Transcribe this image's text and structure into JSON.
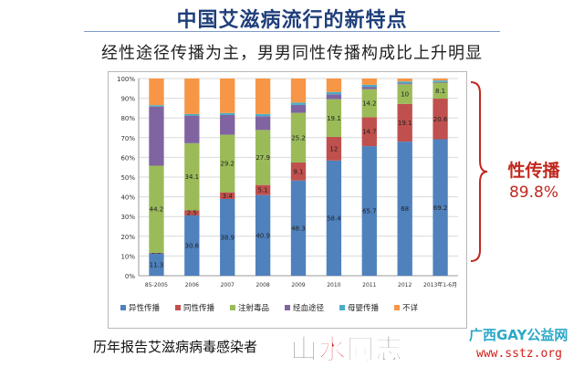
{
  "title": "中国艾滋病流行的新特点",
  "subtitle": "经性途径传播为主，男男同性传播构成比上升明显",
  "callout": {
    "label": "性传播",
    "value": "89.8%"
  },
  "caption": "历年报告艾滋病病毒感染者",
  "watermark": {
    "main_a": "山",
    "main_b": "水",
    "main_c": "同志",
    "org": "广西GAY公益网",
    "url": "www.sstz.org"
  },
  "colors": {
    "heterosexual": "#4f81bd",
    "homosexual": "#c0504d",
    "injection": "#9bbb59",
    "blood": "#8064a2",
    "mtct": "#4bacc6",
    "unknown": "#f79646",
    "callout": "#c0281e"
  },
  "chart_data": {
    "type": "bar",
    "stacked": true,
    "categories": [
      "85-2005",
      "2006",
      "2007",
      "2008",
      "2009",
      "2010",
      "2011",
      "2012",
      "2013年1-6月"
    ],
    "ylim": [
      0,
      100
    ],
    "yticks": [
      "0%",
      "10%",
      "20%",
      "30%",
      "40%",
      "50%",
      "60%",
      "70%",
      "80%",
      "90%",
      "100%"
    ],
    "legend_position": "bottom",
    "grid": true,
    "series": [
      {
        "name": "异性传播",
        "color": "#4f81bd",
        "values": [
          11.3,
          30.6,
          38.9,
          40.9,
          48.3,
          58.4,
          65.7,
          68,
          69.2
        ],
        "labels": [
          "11.3",
          "30.6",
          "38.9",
          "40.9",
          "48.3",
          "58.4",
          "65.7",
          "68",
          "69.2"
        ]
      },
      {
        "name": "同性传播",
        "color": "#c0504d",
        "values": [
          0.3,
          2.5,
          3.4,
          5.1,
          9.1,
          12,
          14.7,
          19.1,
          20.6
        ],
        "labels": [
          "0.3",
          "2.5",
          "3.4",
          "5.1",
          "9.1",
          "12",
          "14.7",
          "19.1",
          "20.6"
        ]
      },
      {
        "name": "注射毒品",
        "color": "#9bbb59",
        "values": [
          44.2,
          34.1,
          29.2,
          27.9,
          25.2,
          19.1,
          14.2,
          10,
          8.1
        ],
        "labels": [
          "44.2",
          "34.1",
          "29.2",
          "27.9",
          "25.2",
          "19.1",
          "14.2",
          "10",
          "8.1"
        ]
      },
      {
        "name": "经血途径",
        "color": "#8064a2",
        "values": [
          30,
          14,
          10,
          7,
          4,
          2.5,
          1.2,
          0.5,
          0.3
        ],
        "labels": [
          "",
          "",
          "",
          "",
          "",
          "",
          "",
          "",
          ""
        ]
      },
      {
        "name": "母婴传播",
        "color": "#4bacc6",
        "values": [
          0.7,
          0.8,
          1,
          1.1,
          1.2,
          1.1,
          1,
          0.9,
          0.8
        ],
        "labels": [
          "",
          "",
          "",
          "",
          "",
          "",
          "",
          "",
          ""
        ]
      },
      {
        "name": "不详",
        "color": "#f79646",
        "values": [
          13.5,
          18,
          17.5,
          18,
          12.2,
          6.9,
          3.2,
          1.5,
          1
        ],
        "labels": [
          "",
          "",
          "",
          "",
          "",
          "",
          "",
          "",
          ""
        ]
      }
    ]
  }
}
